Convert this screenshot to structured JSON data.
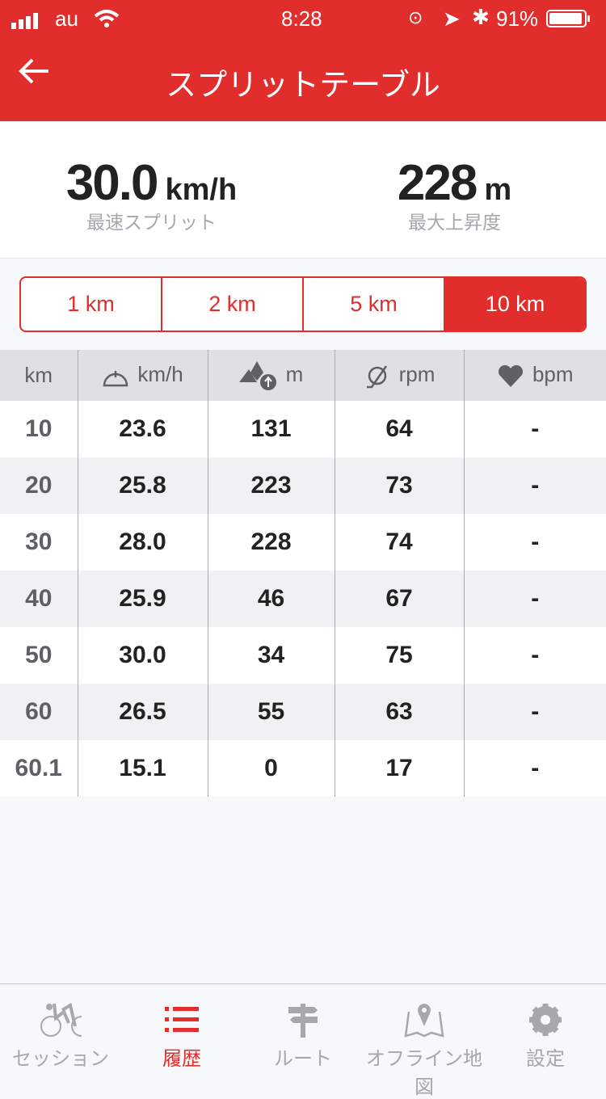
{
  "status_bar": {
    "carrier": "au",
    "time": "8:28",
    "battery": "91%"
  },
  "nav": {
    "title": "スプリットテーブル",
    "back_icon": "arrow-left-icon"
  },
  "summary": [
    {
      "value": "30.0",
      "unit": "km/h",
      "label": "最速スプリット"
    },
    {
      "value": "228",
      "unit": "m",
      "label": "最大上昇度"
    }
  ],
  "segments": {
    "items": [
      "1 km",
      "2 km",
      "5 km",
      "10 km"
    ],
    "selected": "10 km"
  },
  "table": {
    "headers": [
      {
        "label": "km",
        "icon": ""
      },
      {
        "label": "km/h",
        "icon": "speedometer-icon"
      },
      {
        "label": "m",
        "icon": "elevation-gain-icon"
      },
      {
        "label": "rpm",
        "icon": "cadence-icon"
      },
      {
        "label": "bpm",
        "icon": "heart-icon"
      }
    ],
    "rows": [
      [
        "10",
        "23.6",
        "131",
        "64",
        "-"
      ],
      [
        "20",
        "25.8",
        "223",
        "73",
        "-"
      ],
      [
        "30",
        "28.0",
        "228",
        "74",
        "-"
      ],
      [
        "40",
        "25.9",
        "46",
        "67",
        "-"
      ],
      [
        "50",
        "30.0",
        "34",
        "75",
        "-"
      ],
      [
        "60",
        "26.5",
        "55",
        "63",
        "-"
      ],
      [
        "60.1",
        "15.1",
        "0",
        "17",
        "-"
      ]
    ]
  },
  "tabbar": {
    "items": [
      {
        "label": "セッション",
        "icon": "cyclist-icon"
      },
      {
        "label": "履歴",
        "icon": "list-icon",
        "active": true
      },
      {
        "label": "ルート",
        "icon": "signpost-icon"
      },
      {
        "label": "オフライン地図",
        "icon": "map-pin-icon"
      },
      {
        "label": "設定",
        "icon": "gear-icon"
      }
    ]
  },
  "colors": {
    "accent": "#e22d2d",
    "header_bg": "#dde1e5",
    "alt_row": "#eff1f3"
  }
}
